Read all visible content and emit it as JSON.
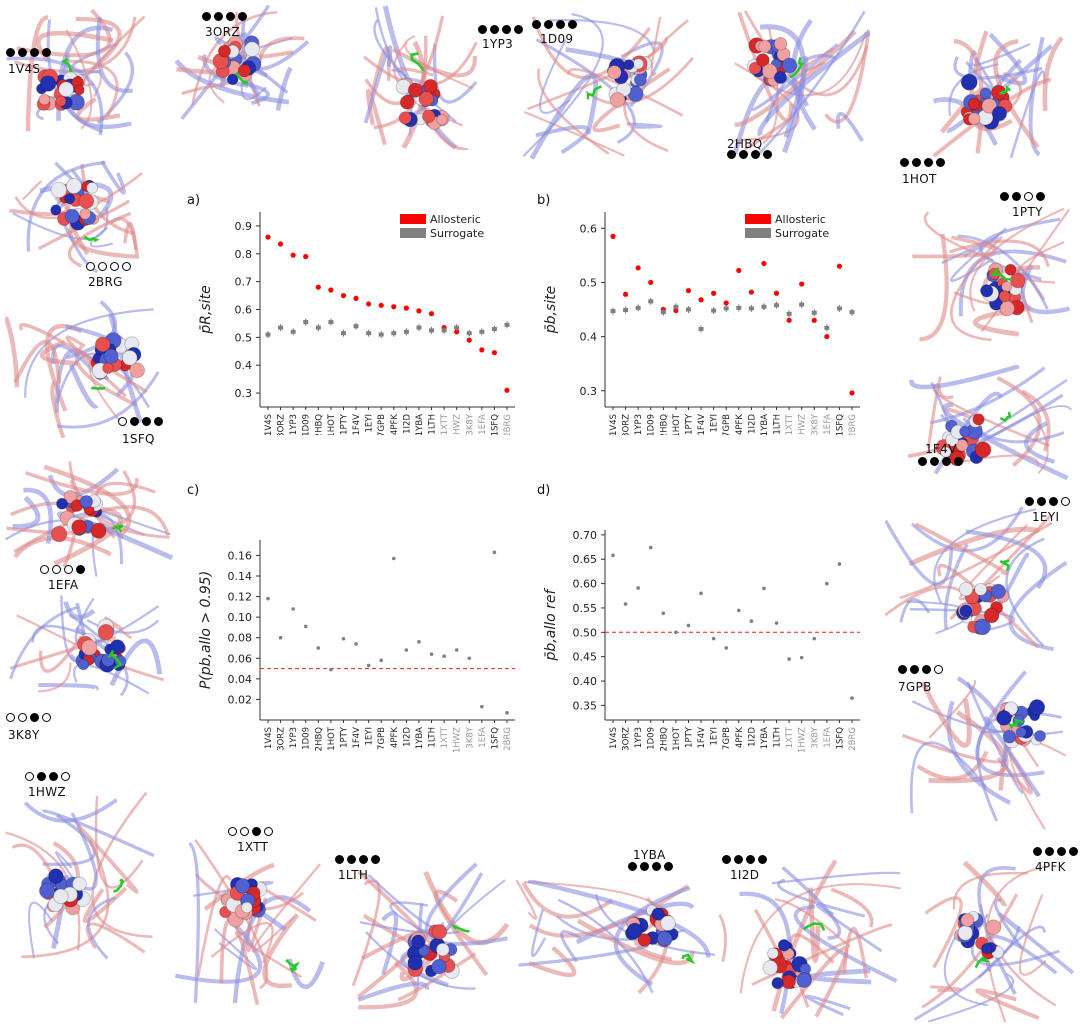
{
  "proteins": [
    {
      "id": "1V4S",
      "dots": [
        1,
        1,
        1,
        1
      ]
    },
    {
      "id": "3ORZ",
      "dots": [
        1,
        1,
        1,
        1
      ]
    },
    {
      "id": "1YP3",
      "dots": [
        1,
        1,
        1,
        1
      ]
    },
    {
      "id": "1D09",
      "dots": [
        1,
        1,
        1,
        1
      ]
    },
    {
      "id": "2HBQ",
      "dots": [
        1,
        1,
        1,
        1
      ]
    },
    {
      "id": "1HOT",
      "dots": [
        1,
        1,
        1,
        1
      ]
    },
    {
      "id": "2BRG",
      "dots": [
        0,
        0,
        0,
        0
      ]
    },
    {
      "id": "1PTY",
      "dots": [
        1,
        1,
        0,
        1
      ]
    },
    {
      "id": "1SFQ",
      "dots": [
        0,
        1,
        1,
        1
      ]
    },
    {
      "id": "1F4V",
      "dots": [
        1,
        1,
        1,
        1
      ]
    },
    {
      "id": "1EFA",
      "dots": [
        0,
        0,
        0,
        1
      ]
    },
    {
      "id": "1EYI",
      "dots": [
        1,
        1,
        1,
        0
      ]
    },
    {
      "id": "3K8Y",
      "dots": [
        0,
        0,
        1,
        0
      ]
    },
    {
      "id": "7GPB",
      "dots": [
        1,
        1,
        1,
        0
      ]
    },
    {
      "id": "1HWZ",
      "dots": [
        0,
        1,
        1,
        0
      ]
    },
    {
      "id": "1XTT",
      "dots": [
        0,
        0,
        1,
        0
      ]
    },
    {
      "id": "1LTH",
      "dots": [
        1,
        1,
        1,
        1
      ]
    },
    {
      "id": "1YBA",
      "dots": [
        1,
        1,
        1,
        1
      ]
    },
    {
      "id": "1I2D",
      "dots": [
        1,
        1,
        1,
        1
      ]
    },
    {
      "id": "4PFK",
      "dots": [
        1,
        1,
        1,
        1
      ]
    }
  ],
  "chart_data": [
    {
      "type": "scatter",
      "panel": "a)",
      "ylabel": "p̄R,site",
      "ylim": [
        0.25,
        0.95
      ],
      "yticks": [
        0.3,
        0.4,
        0.5,
        0.6,
        0.7,
        0.8,
        0.9
      ],
      "legend": [
        "Allosteric",
        "Surrogate"
      ],
      "legend_colors": [
        "#ff0000",
        "#808080"
      ],
      "categories": [
        "1V4S",
        "3ORZ",
        "1YP3",
        "1D09",
        "2HBQ",
        "1HOT",
        "1PTY",
        "1F4V",
        "1EYI",
        "7GPB",
        "4PFK",
        "1I2D",
        "1YBA",
        "1LTH",
        "1XTT",
        "1HWZ",
        "3K8Y",
        "1EFA",
        "1SFQ",
        "2BRG"
      ],
      "gray_categories": [
        "1XTT",
        "1HWZ",
        "3K8Y",
        "1EFA",
        "2BRG"
      ],
      "series": [
        {
          "name": "Allosteric",
          "color": "#ff0000",
          "values": [
            0.86,
            0.835,
            0.795,
            0.79,
            0.68,
            0.67,
            0.65,
            0.64,
            0.62,
            0.615,
            0.61,
            0.605,
            0.595,
            0.585,
            0.535,
            0.52,
            0.49,
            0.455,
            0.445,
            0.31
          ]
        },
        {
          "name": "Surrogate",
          "color": "#808080",
          "values": [
            0.51,
            0.535,
            0.52,
            0.555,
            0.535,
            0.555,
            0.515,
            0.54,
            0.515,
            0.51,
            0.515,
            0.52,
            0.535,
            0.525,
            0.525,
            0.535,
            0.515,
            0.52,
            0.53,
            0.545
          ]
        }
      ]
    },
    {
      "type": "scatter",
      "panel": "b)",
      "ylabel": "p̄b,site",
      "ylim": [
        0.27,
        0.63
      ],
      "yticks": [
        0.3,
        0.4,
        0.5,
        0.6
      ],
      "legend": [
        "Allosteric",
        "Surrogate"
      ],
      "legend_colors": [
        "#ff0000",
        "#808080"
      ],
      "categories": [
        "1V4S",
        "3ORZ",
        "1YP3",
        "1D09",
        "2HBQ",
        "1HOT",
        "1PTY",
        "1F4V",
        "1EYI",
        "7GPB",
        "4PFK",
        "1I2D",
        "1YBA",
        "1LTH",
        "1XTT",
        "1HWZ",
        "3K8Y",
        "1EFA",
        "1SFQ",
        "2BRG"
      ],
      "gray_categories": [
        "1XTT",
        "1HWZ",
        "3K8Y",
        "1EFA",
        "2BRG"
      ],
      "series": [
        {
          "name": "Allosteric",
          "color": "#ff0000",
          "values": [
            0.585,
            0.478,
            0.527,
            0.5,
            0.45,
            0.448,
            0.485,
            0.468,
            0.48,
            0.462,
            0.522,
            0.482,
            0.535,
            0.48,
            0.43,
            0.497,
            0.43,
            0.4,
            0.53,
            0.296
          ]
        },
        {
          "name": "Surrogate",
          "color": "#808080",
          "values": [
            0.447,
            0.449,
            0.453,
            0.465,
            0.445,
            0.455,
            0.45,
            0.414,
            0.448,
            0.452,
            0.453,
            0.452,
            0.455,
            0.458,
            0.442,
            0.459,
            0.444,
            0.416,
            0.452,
            0.445
          ]
        }
      ]
    },
    {
      "type": "scatter",
      "panel": "c)",
      "ylabel": "P(pb,allo > 0.95)",
      "ylim": [
        0.0,
        0.175
      ],
      "yticks": [
        0.02,
        0.04,
        0.06,
        0.08,
        0.1,
        0.12,
        0.14,
        0.16
      ],
      "yticklabels": [
        "0.02",
        "0.04",
        "0.06",
        "0.08",
        "0.10",
        "0.12",
        "0.14",
        "0.16"
      ],
      "reference_line": 0.05,
      "categories": [
        "1V4S",
        "3ORZ",
        "1YP3",
        "1D09",
        "2HBQ",
        "1HOT",
        "1PTY",
        "1F4V",
        "1EYI",
        "7GPB",
        "4PFK",
        "1I2D",
        "1YBA",
        "1LTH",
        "1XTT",
        "1HWZ",
        "3K8Y",
        "1EFA",
        "1SFQ",
        "2BRG"
      ],
      "gray_categories": [
        "1XTT",
        "1HWZ",
        "3K8Y",
        "1EFA",
        "2BRG"
      ],
      "series": [
        {
          "name": "value",
          "color": "#808080",
          "values": [
            0.118,
            0.08,
            0.108,
            0.091,
            0.07,
            0.049,
            0.079,
            0.074,
            0.053,
            0.058,
            0.157,
            0.068,
            0.076,
            0.064,
            0.062,
            0.068,
            0.06,
            0.013,
            0.163,
            0.007
          ]
        }
      ]
    },
    {
      "type": "scatter",
      "panel": "d)",
      "ylabel": "p̄b,allo ref",
      "ylim": [
        0.32,
        0.71
      ],
      "yticks": [
        0.35,
        0.4,
        0.45,
        0.5,
        0.55,
        0.6,
        0.65,
        0.7
      ],
      "yticklabels": [
        "0.35",
        "0.40",
        "0.45",
        "0.50",
        "0.55",
        "0.60",
        "0.65",
        "0.70"
      ],
      "reference_line": 0.5,
      "categories": [
        "1V4S",
        "3ORZ",
        "1YP3",
        "1D09",
        "2HBQ",
        "1HOT",
        "1PTY",
        "1F4V",
        "1EYI",
        "7GPB",
        "4PFK",
        "1I2D",
        "1YBA",
        "1LTH",
        "1XTT",
        "1HWZ",
        "3K8Y",
        "1EFA",
        "1SFQ",
        "2BRG"
      ],
      "gray_categories": [
        "1XTT",
        "1HWZ",
        "3K8Y",
        "1EFA",
        "2BRG"
      ],
      "series": [
        {
          "name": "value",
          "color": "#808080",
          "values": [
            0.658,
            0.558,
            0.591,
            0.674,
            0.539,
            0.5,
            0.514,
            0.58,
            0.487,
            0.468,
            0.545,
            0.523,
            0.59,
            0.519,
            0.445,
            0.448,
            0.487,
            0.6,
            0.64,
            0.365
          ]
        }
      ]
    }
  ]
}
